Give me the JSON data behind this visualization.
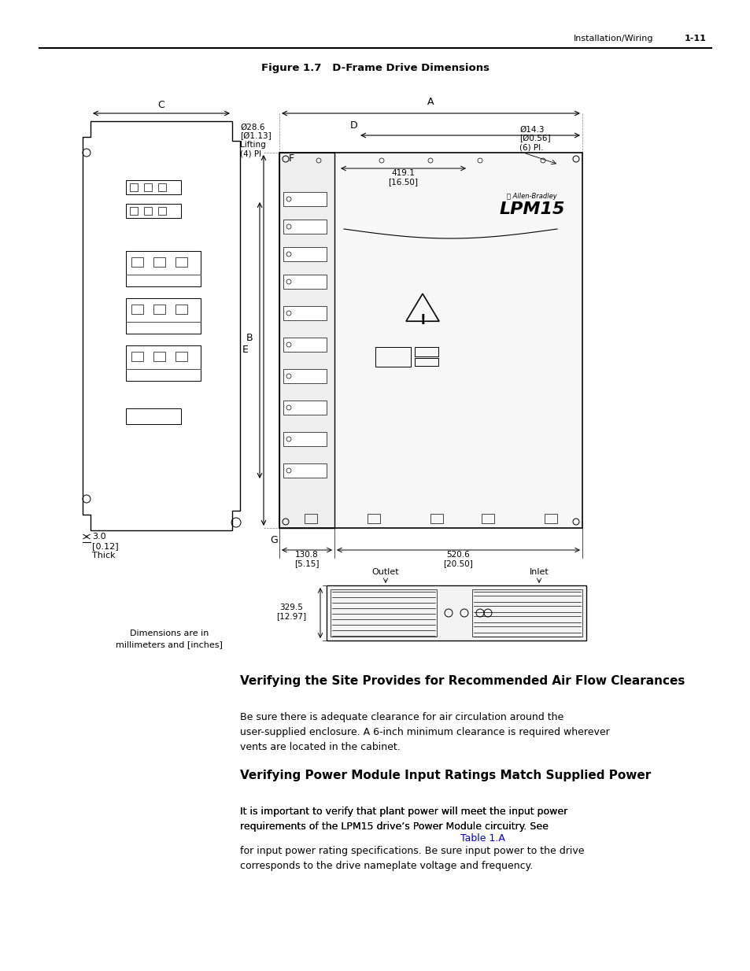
{
  "page_header_right": "Installation/Wiring",
  "page_number": "1-11",
  "figure_title": "Figure 1.7   D-Frame Drive Dimensions",
  "section1_title": "Verifying the Site Provides for Recommended Air Flow Clearances",
  "section1_body": "Be sure there is adequate clearance for air circulation around the\nuser-supplied enclosure. A 6-inch minimum clearance is required wherever\nvents are located in the cabinet.",
  "section2_title": "Verifying Power Module Input Ratings Match Supplied Power",
  "section2_body1": "It is important to verify that plant power will meet the input power\nrequirements of the LPM15 drive’s Power Module circuitry. See ",
  "section2_link": "Table 1.A",
  "section2_body2": "\nfor input power rating specifications. Be sure input power to the drive\ncorresponds to the drive nameplate voltage and frequency.",
  "dim_note": "Dimensions are in\nmillimeters and [inches]",
  "bg_color": "#ffffff",
  "text_color": "#000000",
  "line_color": "#000000"
}
